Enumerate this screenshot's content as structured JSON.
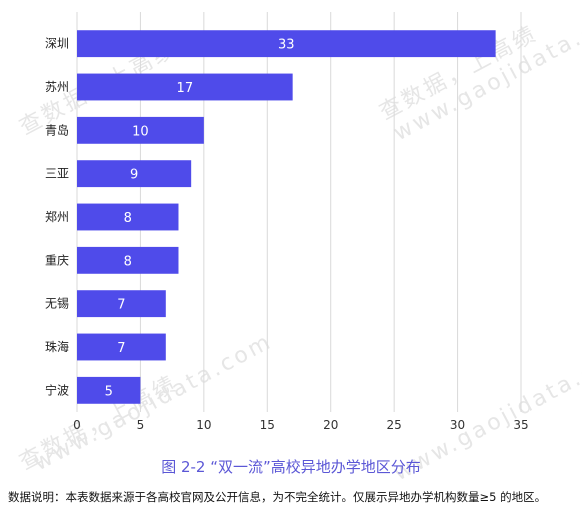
{
  "chart_data": {
    "type": "bar",
    "orientation": "horizontal",
    "categories": [
      "深圳",
      "苏州",
      "青岛",
      "三亚",
      "郑州",
      "重庆",
      "无锡",
      "珠海",
      "宁波"
    ],
    "values": [
      33,
      17,
      10,
      9,
      8,
      8,
      7,
      7,
      5
    ],
    "data_labels": [
      "33",
      "17",
      "10",
      "9",
      "8",
      "8",
      "7",
      "7",
      "5"
    ],
    "xlim": [
      0,
      35
    ],
    "xticks": [
      "0",
      "5",
      "10",
      "15",
      "20",
      "25",
      "30",
      "35"
    ],
    "grid": true,
    "legend": "none",
    "title": "",
    "xlabel": "",
    "ylabel": ""
  },
  "colors": {
    "bar": "#4f4bea",
    "bar_label": "#ffffff",
    "grid": "#d9d9d9",
    "caption": "#5b57d6",
    "watermark": "#e6e6e6"
  },
  "caption": "图 2-2 “双一流”高校异地办学地区分布",
  "note": "数据说明：本表数据来源于各高校官网及公开信息，为不完全统计。仅展示异地办学机构数量≥5 的地区。",
  "watermarks": [
    "查数据，上高绩",
    "www.gaojidata.com",
    "查数据，上高绩",
    "www.gaojidata.com",
    "查数据，上高绩",
    "www.gaojidata.com"
  ]
}
